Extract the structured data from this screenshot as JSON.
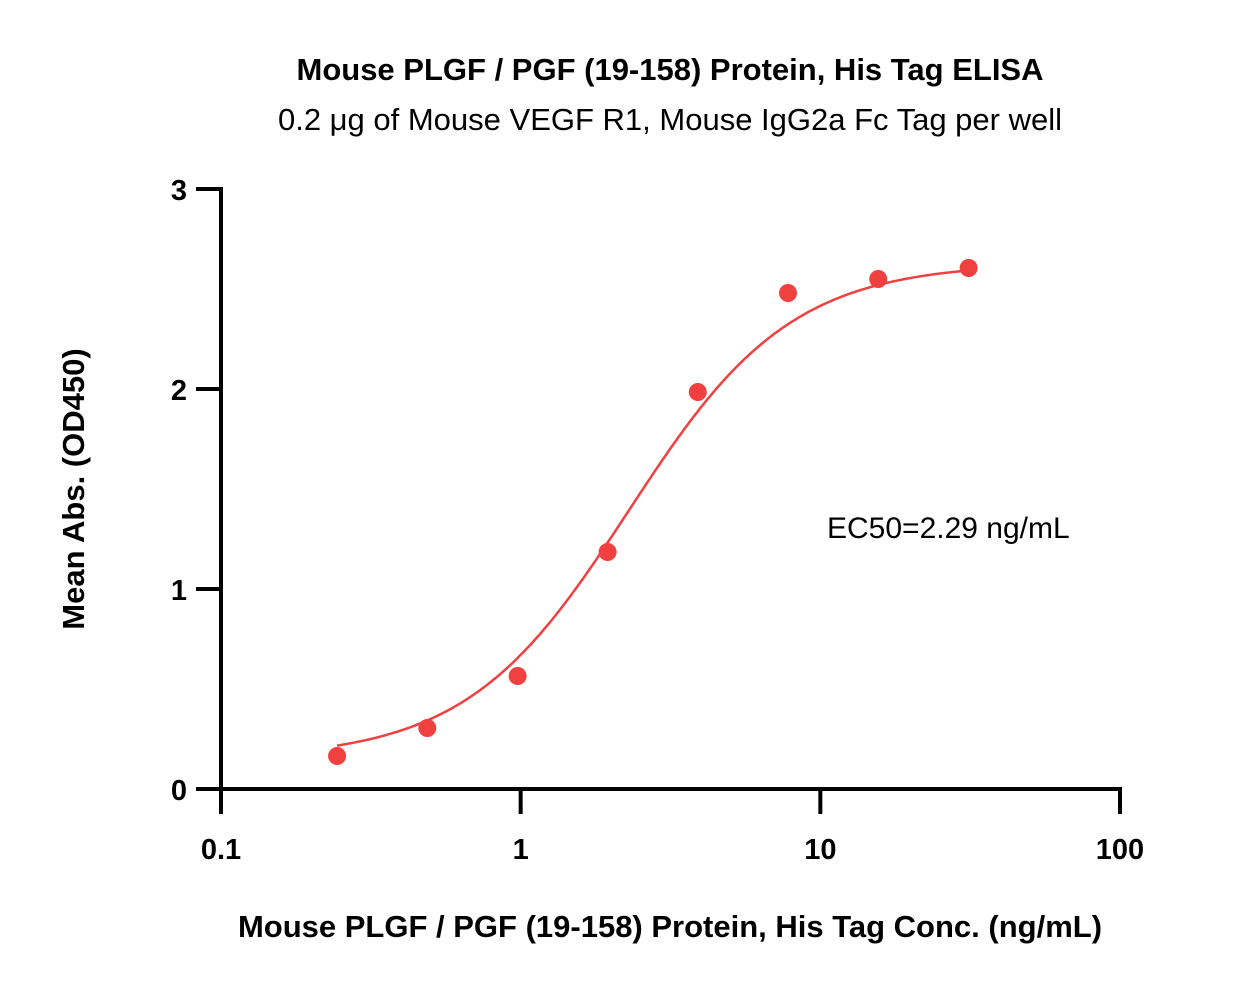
{
  "chart_data": {
    "type": "scatter",
    "title": "Mouse PLGF / PGF (19-158) Protein, His Tag ELISA",
    "subtitle": "0.2 μg of Mouse VEGF R1, Mouse IgG2a Fc Tag per well",
    "xlabel": "Mouse PLGF / PGF (19-158) Protein, His Tag  Conc. (ng/mL)",
    "ylabel": "Mean Abs. (OD450)",
    "xscale": "log",
    "xlim": [
      0.1,
      100
    ],
    "ylim": [
      0,
      3
    ],
    "xticks": [
      "0.1",
      "1",
      "10",
      "100"
    ],
    "yticks": [
      "0",
      "1",
      "2",
      "3"
    ],
    "grid": false,
    "annotation": "EC50=2.29 ng/mL",
    "series": [
      {
        "name": "Mouse PLGF / PGF (19-158) Protein, His Tag",
        "color": "#f04040",
        "x": [
          0.244,
          0.488,
          0.977,
          1.95,
          3.9,
          7.8,
          15.6,
          31.25
        ],
        "y": [
          0.165,
          0.305,
          0.565,
          1.185,
          1.985,
          2.48,
          2.55,
          2.605
        ],
        "fit": {
          "model": "4PL",
          "bottom": 0.15,
          "top": 2.63,
          "ec50": 2.29,
          "hill": 1.6
        }
      }
    ]
  }
}
